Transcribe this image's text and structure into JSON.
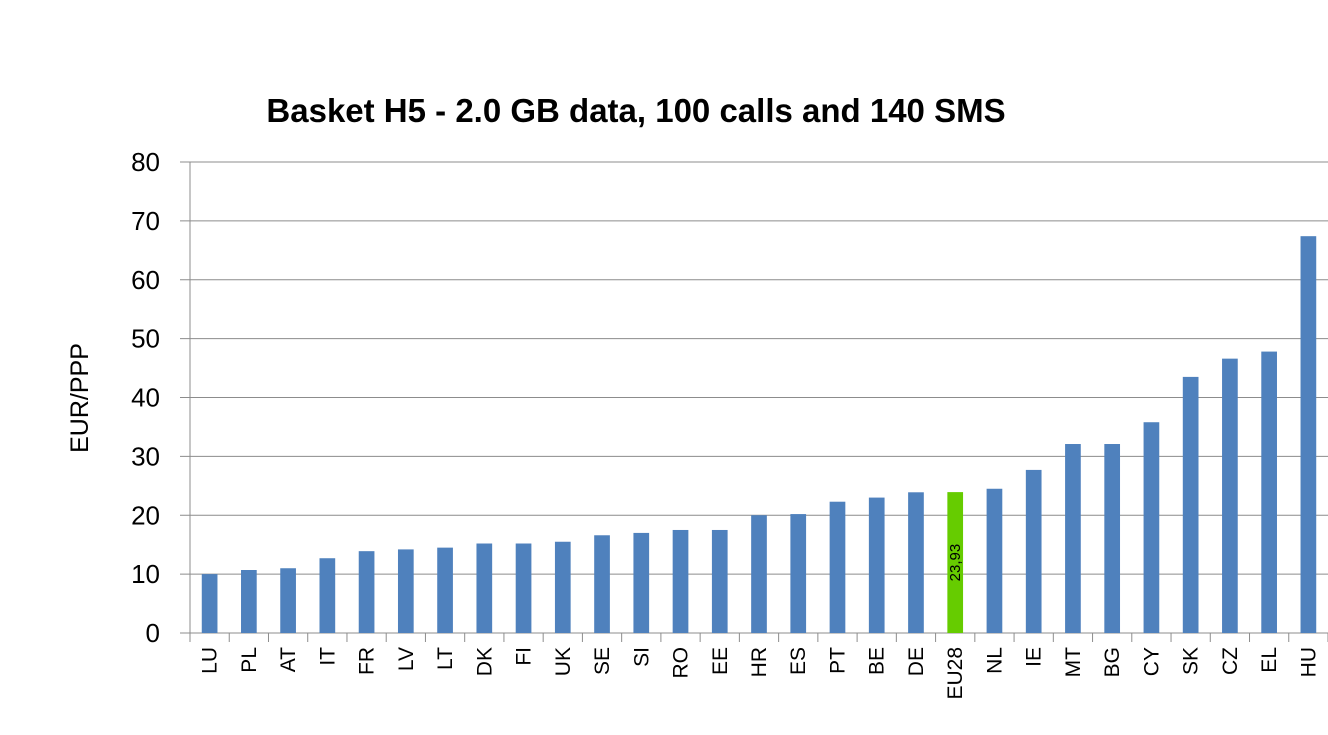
{
  "chart_data": {
    "type": "bar",
    "title": "Basket H5 - 2.0 GB data, 100 calls and 140 SMS",
    "xlabel": "",
    "ylabel": "EUR/PPP",
    "ylim": [
      0,
      80
    ],
    "yticks": [
      0,
      10,
      20,
      30,
      40,
      50,
      60,
      70,
      80
    ],
    "grid": true,
    "legend": "none",
    "categories": [
      "LU",
      "PL",
      "AT",
      "IT",
      "FR",
      "LV",
      "LT",
      "DK",
      "FI",
      "UK",
      "SE",
      "SI",
      "RO",
      "EE",
      "HR",
      "ES",
      "PT",
      "BE",
      "DE",
      "EU28",
      "NL",
      "IE",
      "MT",
      "BG",
      "CY",
      "SK",
      "CZ",
      "EL",
      "HU"
    ],
    "values": [
      10.0,
      10.7,
      11.0,
      12.7,
      13.9,
      14.2,
      14.5,
      15.2,
      15.2,
      15.5,
      16.6,
      17.0,
      17.5,
      17.5,
      20.0,
      20.2,
      22.3,
      23.0,
      23.9,
      23.93,
      24.5,
      27.7,
      32.1,
      32.1,
      35.8,
      43.5,
      46.6,
      47.8,
      67.4
    ],
    "colors": {
      "default": "#4f81bd",
      "highlight": "#66cc00"
    },
    "highlight_category": "EU28",
    "data_labels": [
      {
        "category": "EU28",
        "text": "23,93"
      }
    ]
  }
}
